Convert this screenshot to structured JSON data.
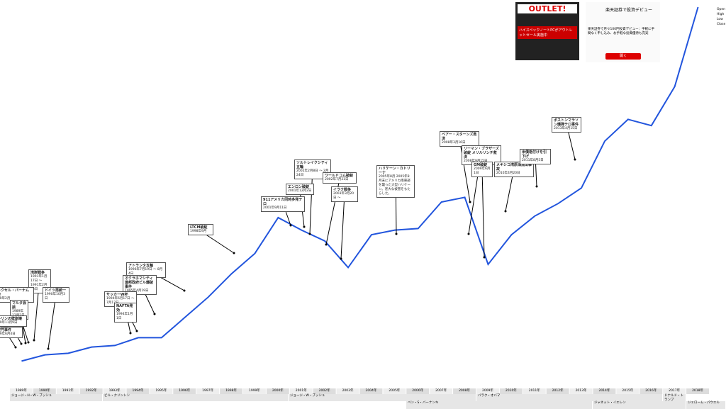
{
  "chart_data": {
    "type": "line",
    "color": "#2255dd",
    "x": [
      1989,
      1990,
      1991,
      1992,
      1993,
      1994,
      1995,
      1996,
      1997,
      1998,
      1999,
      2000,
      2001,
      2002,
      2003,
      2004,
      2005,
      2006,
      2007,
      2008,
      2009,
      2010,
      2011,
      2012,
      2013,
      2014,
      2015,
      2016,
      2017,
      2018
    ],
    "values": [
      2300,
      2700,
      2800,
      3200,
      3300,
      3800,
      3800,
      5100,
      6400,
      7900,
      9200,
      11500,
      10700,
      10000,
      8300,
      10400,
      10700,
      10800,
      12500,
      12800,
      8500,
      10400,
      11600,
      12400,
      13400,
      16400,
      17800,
      17400,
      19900,
      25000
    ],
    "ylim": [
      0,
      25000
    ],
    "xlim": [
      1989,
      2019
    ],
    "xticks": [
      {
        "value": 1989,
        "label": "1989年"
      },
      {
        "value": 1990,
        "label": "1990年"
      },
      {
        "value": 1991,
        "label": "1991年"
      },
      {
        "value": 1992,
        "label": "1992年"
      },
      {
        "value": 1993,
        "label": "1993年"
      },
      {
        "value": 1994,
        "label": "1994年"
      },
      {
        "value": 1995,
        "label": "1995年"
      },
      {
        "value": 1996,
        "label": "1996年"
      },
      {
        "value": 1997,
        "label": "1997年"
      },
      {
        "value": 1998,
        "label": "1998年"
      },
      {
        "value": 1999,
        "label": "1999年"
      },
      {
        "value": 2000,
        "label": "2000年"
      },
      {
        "value": 2001,
        "label": "2001年"
      },
      {
        "value": 2002,
        "label": "2002年"
      },
      {
        "value": 2003,
        "label": "2003年"
      },
      {
        "value": 2004,
        "label": "2004年"
      },
      {
        "value": 2005,
        "label": "2005年"
      },
      {
        "value": 2006,
        "label": "2006年"
      },
      {
        "value": 2007,
        "label": "2007年"
      },
      {
        "value": 2008,
        "label": "2008年"
      },
      {
        "value": 2009,
        "label": "2009年"
      },
      {
        "value": 2010,
        "label": "2010年"
      },
      {
        "value": 2011,
        "label": "2011年"
      },
      {
        "value": 2012,
        "label": "2012年"
      },
      {
        "value": 2013,
        "label": "2013年"
      },
      {
        "value": 2014,
        "label": "2014年"
      },
      {
        "value": 2015,
        "label": "2015年"
      },
      {
        "value": 2016,
        "label": "2016年"
      },
      {
        "value": 2017,
        "label": "2017年"
      },
      {
        "value": 2018,
        "label": "2018年"
      }
    ]
  },
  "annotations": [
    {
      "title": "ソルトレイクシティ五輪",
      "date": "2002年2月8日 ～ 2月24日"
    },
    {
      "title": "ワールドコム破綻",
      "date": "2002年7月21日"
    },
    {
      "title": "エンロン破綻",
      "date": "2001年12月2日"
    },
    {
      "title": "イラク戦争",
      "date": "2003年3月20日 ～"
    },
    {
      "title": "911アメリカ同時多発テロ",
      "date": "2001年9月11日"
    },
    {
      "title": "LTCM破綻",
      "date": "1998年9月"
    },
    {
      "title": "アトランタ五輪",
      "date": "1996年7月19日 ～ 8月4日"
    },
    {
      "title": "オクラホマシティ連邦政府ビル爆破事件",
      "date": "1995年4月19日"
    },
    {
      "title": "サッカーW杯",
      "date": "1994年6月17日 ～ 7月17日"
    },
    {
      "title": "NAFTA発効",
      "date": "1994年1月1日"
    },
    {
      "title": "湾岸戦争",
      "date": "1991年1月17日 ～ 1991年2月28日"
    },
    {
      "title": "ドレクセル・バーナム破綻",
      "date": "1990年2月"
    },
    {
      "title": "ドイツ再統一",
      "date": "1990年10月3日"
    },
    {
      "title": "マルタ会談",
      "date": "1989年12月2日"
    },
    {
      "title": "ベルリンの壁崩壊",
      "date": "1989年11月9日"
    },
    {
      "title": "天安門事件",
      "date": "1989年6月4日"
    },
    {
      "title": "ハリケーン・カトリーナ",
      "date": "2005年8月 2005年8月末にアメリカ南東部を襲った大型ハリケーン。甚大な被害をもたらした。"
    },
    {
      "title": "ベアー・スターンズ救済",
      "date": "2008年3月16日"
    },
    {
      "title": "リーマン・ブラザーズ破綻 メリルリンチ救済",
      "date": "2008年9月15日"
    },
    {
      "title": "GM破綻",
      "date": "2009年6月1日"
    },
    {
      "title": "メキシコ湾原油流出事故",
      "date": "2010年4月20日"
    },
    {
      "title": "米債格付けを引下げ",
      "date": "2011年8月5日"
    },
    {
      "title": "ボストンマラソン爆弾テロ事件",
      "date": "2013年4月15日"
    }
  ],
  "presidents": [
    "ジョージ・H・W・ブッシュ",
    "ビル・クリントン",
    "ジョージ・W・ブッシュ",
    "バラク・オバマ",
    "ドナルド・トランプ"
  ],
  "fed_chairs": [
    "ベン・S・バーナンキ",
    "ジャネット・イエレン",
    "ジェローム・パウエル"
  ],
  "ads": {
    "outlet": "OUTLET!",
    "outlet_sub": "ハイスペックノートPCがアウトレットセール実施中",
    "bank_title": "楽天証券で投資デビュー",
    "bank_text": "楽天証券で月々100円投資デビュー：手軽に手間なく申し込み、お手軽な投資優待も充実",
    "bank_button": "開く"
  },
  "ohlc_legend": [
    "Open",
    "High",
    "Low",
    "Close"
  ]
}
